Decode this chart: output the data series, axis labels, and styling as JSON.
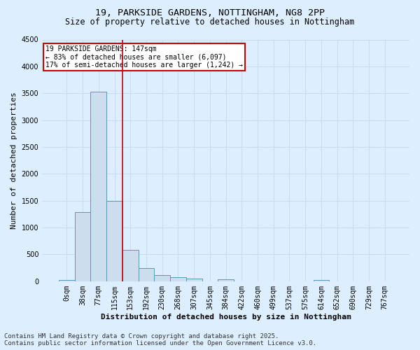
{
  "title_line1": "19, PARKSIDE GARDENS, NOTTINGHAM, NG8 2PP",
  "title_line2": "Size of property relative to detached houses in Nottingham",
  "xlabel": "Distribution of detached houses by size in Nottingham",
  "ylabel": "Number of detached properties",
  "bin_labels": [
    "0sqm",
    "38sqm",
    "77sqm",
    "115sqm",
    "153sqm",
    "192sqm",
    "230sqm",
    "268sqm",
    "307sqm",
    "345sqm",
    "384sqm",
    "422sqm",
    "460sqm",
    "499sqm",
    "537sqm",
    "575sqm",
    "614sqm",
    "652sqm",
    "690sqm",
    "729sqm",
    "767sqm"
  ],
  "bar_values": [
    30,
    1290,
    3530,
    1490,
    590,
    240,
    110,
    75,
    50,
    0,
    35,
    0,
    0,
    0,
    0,
    0,
    30,
    0,
    0,
    0,
    0
  ],
  "bar_color": "#ccdded",
  "bar_edge_color": "#5599bb",
  "vline_index": 3.5,
  "annotation_title": "19 PARKSIDE GARDENS: 147sqm",
  "annotation_line1": "← 83% of detached houses are smaller (6,097)",
  "annotation_line2": "17% of semi-detached houses are larger (1,242) →",
  "annotation_box_facecolor": "#ffffff",
  "annotation_box_edgecolor": "#cc0000",
  "vline_color": "#cc0000",
  "ylim": [
    0,
    4500
  ],
  "yticks": [
    0,
    500,
    1000,
    1500,
    2000,
    2500,
    3000,
    3500,
    4000,
    4500
  ],
  "grid_color": "#c8dded",
  "footer_line1": "Contains HM Land Registry data © Crown copyright and database right 2025.",
  "footer_line2": "Contains public sector information licensed under the Open Government Licence v3.0.",
  "bg_color": "#ddeeff",
  "plot_bg_color": "#ddeeff",
  "title_fontsize": 9.5,
  "subtitle_fontsize": 8.5,
  "axis_label_fontsize": 8,
  "tick_fontsize": 7,
  "annotation_fontsize": 7,
  "footer_fontsize": 6.5
}
